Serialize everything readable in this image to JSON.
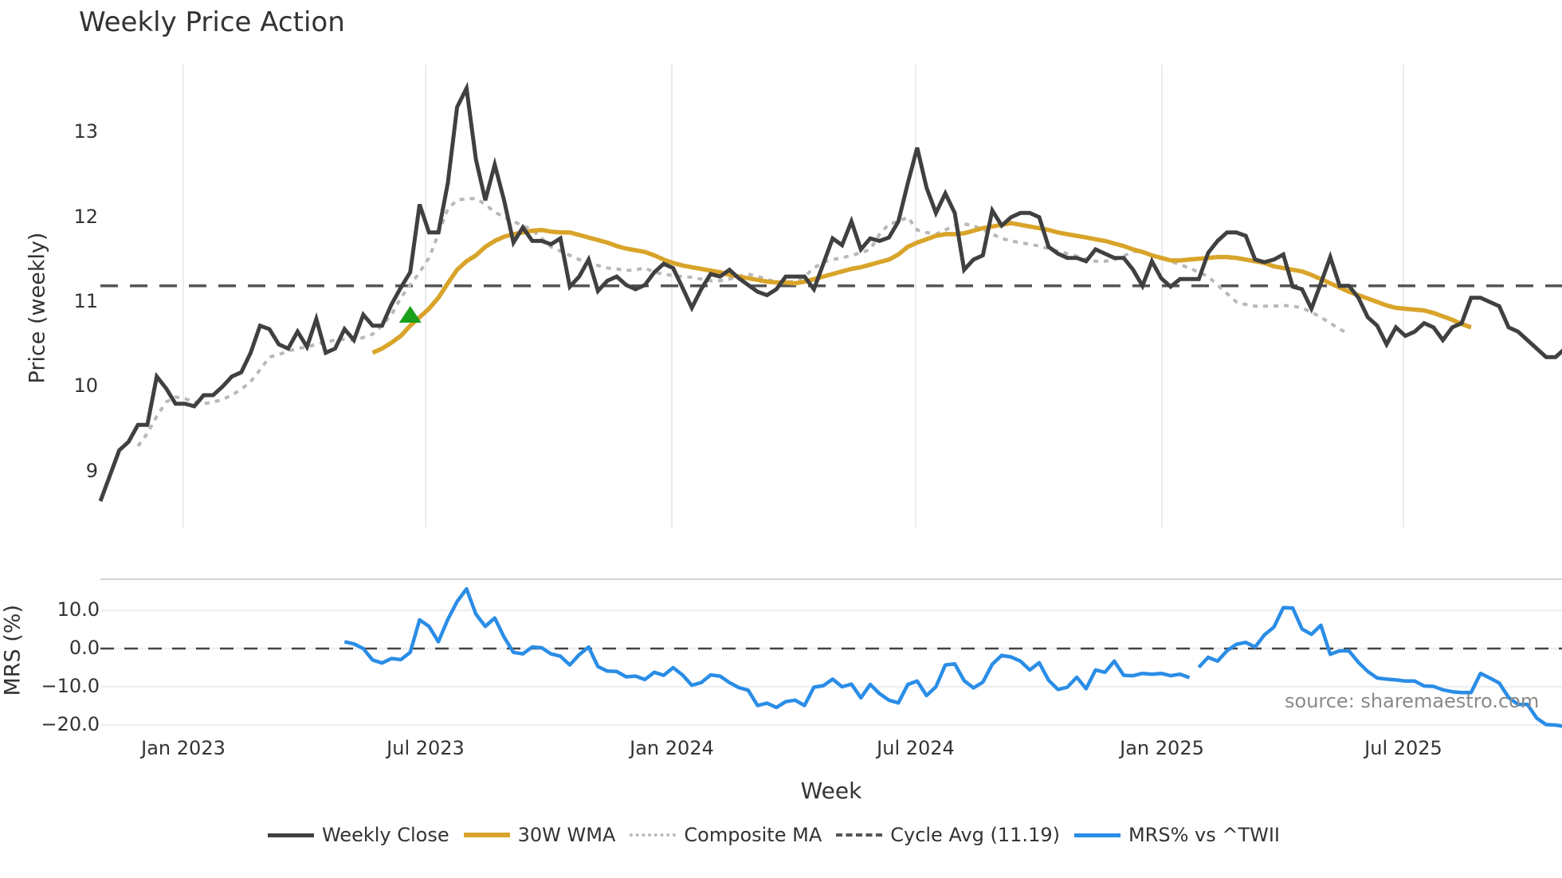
{
  "title": "Weekly Price Action",
  "colors": {
    "weekly_close": "#404040",
    "wma30": "#d9a42a",
    "composite_ma": "#b8b8b8",
    "cycle_avg": "#555555",
    "mrs": "#2a8de6",
    "signal_marker": "#1aa01a",
    "grid": "#e8ecf0"
  },
  "axes": {
    "price_ylabel": "Price (weekly)",
    "mrs_ylabel": "MRS (%)",
    "xlabel": "Week",
    "price_yticks": [
      "9",
      "10",
      "11",
      "12",
      "13"
    ],
    "mrs_yticks": [
      "10.0",
      "0.0",
      "−10.0",
      "−20.0"
    ],
    "xticks": [
      "Jan 2023",
      "Jul 2023",
      "Jan 2024",
      "Jul 2024",
      "Jan 2025",
      "Jul 2025"
    ]
  },
  "legend": [
    {
      "label": "Weekly Close",
      "style": "solid",
      "key": "weekly_close"
    },
    {
      "label": "30W WMA",
      "style": "solid",
      "key": "wma30"
    },
    {
      "label": "Composite MA",
      "style": "dotted",
      "key": "composite_ma"
    },
    {
      "label": "Cycle Avg (11.19)",
      "style": "dashed",
      "key": "cycle_avg"
    },
    {
      "label": "MRS% vs ^TWII",
      "style": "solid",
      "key": "mrs"
    }
  ],
  "source": "source: sharemaestro.com",
  "chart_data": [
    {
      "type": "line",
      "title": "Weekly Price Action",
      "xlabel": "Week",
      "ylabel": "Price (weekly)",
      "ylim": [
        8.4,
        13.9
      ],
      "x_ticks": [
        "Jan 2023",
        "Jul 2023",
        "Jan 2024",
        "Jul 2024",
        "Jan 2025",
        "Jul 2025"
      ],
      "x_start_week_offset": -9,
      "grid": true,
      "legend_position": "bottom",
      "cycle_avg": 11.19,
      "signal_markers": [
        {
          "type": "buy-triangle",
          "week_index": 33,
          "value": 10.85
        }
      ],
      "series": [
        {
          "name": "Weekly Close",
          "start_index": 0,
          "values": [
            8.65,
            8.95,
            9.25,
            9.35,
            9.55,
            9.55,
            10.12,
            9.98,
            9.8,
            9.8,
            9.77,
            9.9,
            9.9,
            10.0,
            10.12,
            10.17,
            10.4,
            10.72,
            10.68,
            10.5,
            10.45,
            10.65,
            10.47,
            10.8,
            10.4,
            10.45,
            10.68,
            10.55,
            10.85,
            10.72,
            10.72,
            10.97,
            11.17,
            11.35,
            12.15,
            11.82,
            11.82,
            12.4,
            13.3,
            13.52,
            12.68,
            12.2,
            12.62,
            12.2,
            11.7,
            11.88,
            11.72,
            11.72,
            11.68,
            11.75,
            11.18,
            11.3,
            11.5,
            11.13,
            11.25,
            11.3,
            11.2,
            11.15,
            11.2,
            11.35,
            11.45,
            11.4,
            11.17,
            10.93,
            11.15,
            11.33,
            11.3,
            11.38,
            11.28,
            11.2,
            11.12,
            11.08,
            11.15,
            11.3,
            11.3,
            11.3,
            11.15,
            11.45,
            11.75,
            11.67,
            11.95,
            11.62,
            11.75,
            11.72,
            11.76,
            11.95,
            12.4,
            12.82,
            12.35,
            12.05,
            12.28,
            12.05,
            11.38,
            11.5,
            11.55,
            12.08,
            11.9,
            12.0,
            12.05,
            12.05,
            12.0,
            11.65,
            11.57,
            11.52,
            11.52,
            11.48,
            11.62,
            11.57,
            11.52,
            11.52,
            11.38,
            11.19,
            11.48,
            11.28,
            11.18,
            11.27,
            11.27,
            11.27,
            11.58,
            11.72,
            11.82,
            11.82,
            11.78,
            11.5,
            11.47,
            11.5,
            11.56,
            11.18,
            11.15,
            10.92,
            11.22,
            11.53,
            11.19,
            11.19,
            11.05,
            10.82,
            10.72,
            10.5,
            10.7,
            10.6,
            10.65,
            10.75,
            10.7,
            10.55,
            10.7,
            10.75,
            11.05,
            11.05,
            11.0,
            10.95,
            10.7,
            10.65,
            10.55,
            10.45,
            10.35,
            10.35,
            10.45
          ]
        },
        {
          "name": "30W WMA",
          "start_index": 29,
          "values": [
            10.4,
            10.45,
            10.52,
            10.6,
            10.72,
            10.82,
            10.92,
            11.05,
            11.22,
            11.38,
            11.48,
            11.55,
            11.65,
            11.72,
            11.77,
            11.8,
            11.82,
            11.84,
            11.85,
            11.83,
            11.82,
            11.82,
            11.79,
            11.76,
            11.73,
            11.7,
            11.66,
            11.63,
            11.61,
            11.59,
            11.55,
            11.5,
            11.46,
            11.43,
            11.41,
            11.39,
            11.37,
            11.35,
            11.32,
            11.3,
            11.28,
            11.26,
            11.24,
            11.23,
            11.23,
            11.22,
            11.24,
            11.27,
            11.3,
            11.33,
            11.36,
            11.39,
            11.41,
            11.44,
            11.47,
            11.5,
            11.56,
            11.65,
            11.7,
            11.74,
            11.78,
            11.8,
            11.8,
            11.81,
            11.84,
            11.87,
            11.89,
            11.91,
            11.93,
            11.91,
            11.89,
            11.87,
            11.85,
            11.82,
            11.8,
            11.78,
            11.76,
            11.74,
            11.72,
            11.69,
            11.66,
            11.62,
            11.59,
            11.55,
            11.52,
            11.49,
            11.49,
            11.5,
            11.51,
            11.52,
            11.53,
            11.53,
            11.52,
            11.5,
            11.48,
            11.46,
            11.42,
            11.4,
            11.38,
            11.36,
            11.32,
            11.27,
            11.22,
            11.17,
            11.12,
            11.08,
            11.04,
            11.0,
            10.96,
            10.93,
            10.92,
            10.91,
            10.9,
            10.87,
            10.83,
            10.79,
            10.74,
            10.7
          ]
        },
        {
          "name": "Composite MA",
          "start_index": 4,
          "values": [
            9.3,
            9.45,
            9.65,
            9.82,
            9.88,
            9.86,
            9.82,
            9.8,
            9.82,
            9.85,
            9.9,
            9.97,
            10.06,
            10.2,
            10.35,
            10.38,
            10.42,
            10.45,
            10.47,
            10.5,
            10.53,
            10.55,
            10.56,
            10.55,
            10.58,
            10.62,
            10.72,
            10.85,
            11.05,
            11.2,
            11.35,
            11.52,
            11.8,
            12.1,
            12.2,
            12.22,
            12.22,
            12.15,
            12.06,
            12.0,
            11.95,
            11.9,
            11.85,
            11.75,
            11.65,
            11.6,
            11.55,
            11.5,
            11.45,
            11.43,
            11.4,
            11.39,
            11.37,
            11.38,
            11.4,
            11.35,
            11.33,
            11.31,
            11.3,
            11.29,
            11.27,
            11.25,
            11.25,
            11.27,
            11.3,
            11.33,
            11.3,
            11.27,
            11.23,
            11.22,
            11.25,
            11.3,
            11.4,
            11.47,
            11.5,
            11.52,
            11.55,
            11.58,
            11.62,
            11.8,
            11.92,
            11.95,
            12.0,
            11.85,
            11.82,
            11.8,
            11.85,
            11.9,
            11.92,
            11.9,
            11.85,
            11.8,
            11.75,
            11.72,
            11.7,
            11.68,
            11.66,
            11.63,
            11.6,
            11.57,
            11.54,
            11.5,
            11.48,
            11.48,
            11.5,
            11.54,
            11.6,
            11.58,
            11.55,
            11.52,
            11.48,
            11.44,
            11.4,
            11.35,
            11.3,
            11.2,
            11.1,
            11.0,
            10.97,
            10.95,
            10.95,
            10.95,
            10.96,
            10.95,
            10.93,
            10.88,
            10.82,
            10.75,
            10.68,
            10.62
          ]
        },
        {
          "name": "Cycle Avg (11.19)",
          "constant": 11.19
        }
      ]
    },
    {
      "type": "line",
      "title": "MRS% vs ^TWII",
      "ylabel": "MRS (%)",
      "ylim": [
        -22,
        18
      ],
      "yticks": [
        10.0,
        0.0,
        -10.0,
        -20.0
      ],
      "reference_line": 0.0,
      "series": [
        {
          "name": "MRS% vs ^TWII",
          "segments": [
            {
              "start_index": 26,
              "values": [
                1.8,
                1.2,
                0.0,
                -3.0,
                -3.8,
                -2.6,
                -2.9,
                -1.0,
                7.5,
                5.8,
                1.8,
                7.6,
                12.3,
                15.6,
                9.0,
                5.8,
                8.0,
                3.0,
                -1.0,
                -1.4,
                0.4,
                0.2,
                -1.4,
                -2.0,
                -4.3,
                -1.6,
                0.4,
                -4.7,
                -5.9,
                -6.0,
                -7.4,
                -7.2,
                -8.1,
                -6.2,
                -7.0,
                -5.0,
                -6.9,
                -9.6,
                -8.9,
                -6.9,
                -7.2,
                -8.9,
                -10.2,
                -10.9,
                -14.9,
                -14.3,
                -15.4,
                -13.9,
                -13.5,
                -14.9,
                -10.1,
                -9.7,
                -8.0,
                -10.0,
                -9.3,
                -12.9,
                -9.4,
                -11.8,
                -13.5,
                -14.2,
                -9.4,
                -8.5,
                -12.3,
                -10.0,
                -4.3,
                -4.0,
                -8.4,
                -10.3,
                -8.8,
                -4.1,
                -1.8,
                -2.2,
                -3.3,
                -5.6,
                -3.7,
                -8.3,
                -10.7,
                -10.1,
                -7.5,
                -10.5,
                -5.6,
                -6.2,
                -3.3,
                -7.0,
                -7.1,
                -6.5,
                -6.7,
                -6.5,
                -7.1,
                -6.7,
                -7.6
              ]
            },
            {
              "start_index": 117,
              "values": [
                -4.9,
                -2.3,
                -3.3,
                -0.6,
                1.1,
                1.6,
                0.4,
                3.6,
                5.6,
                10.7,
                10.6,
                5.1,
                3.7,
                6.1,
                -1.5,
                -0.6,
                -0.6,
                -3.6,
                -6.0,
                -7.7,
                -8.0,
                -8.2,
                -8.5,
                -8.5,
                -9.8,
                -9.9,
                -10.8,
                -11.3,
                -11.5,
                -11.5,
                -6.5,
                -7.7,
                -9.0,
                -12.8,
                -14.6,
                -14.6,
                -18.2,
                -19.9,
                -20.0,
                -20.4,
                -19.8
              ]
            }
          ]
        },
        {
          "name": "Zero line",
          "constant": 0.0
        }
      ]
    }
  ]
}
